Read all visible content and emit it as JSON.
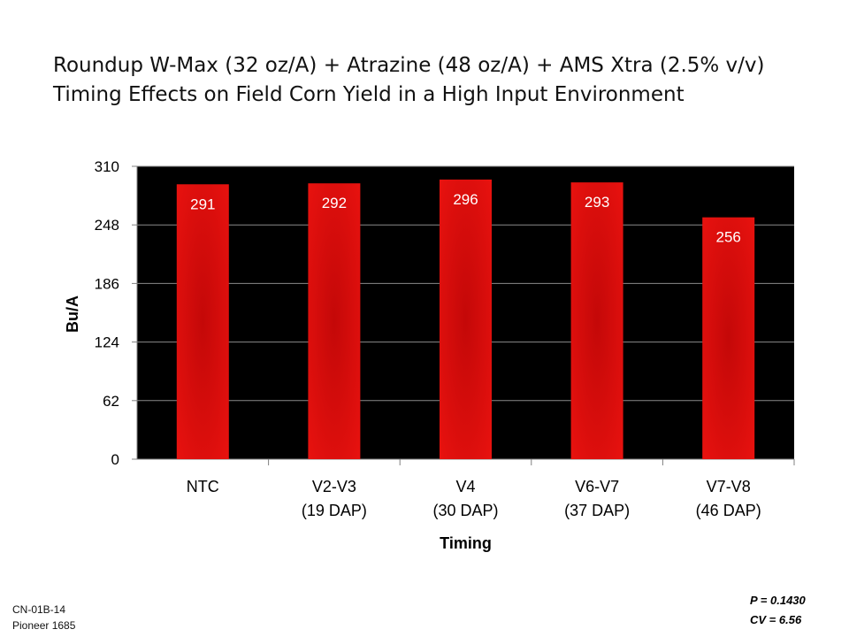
{
  "chart_data": {
    "type": "bar",
    "title": [
      "Roundup W-Max (32 oz/A) + Atrazine (48 oz/A) + AMS Xtra (2.5% v/v)",
      "Timing Effects on Field Corn Yield in a High Input Environment"
    ],
    "categories": [
      [
        "NTC"
      ],
      [
        "V2-V3",
        "(19 DAP)"
      ],
      [
        "V4",
        "(30 DAP)"
      ],
      [
        "V6-V7",
        "(37 DAP)"
      ],
      [
        "V7-V8",
        "(46 DAP)"
      ]
    ],
    "values": [
      291,
      292,
      296,
      293,
      256
    ],
    "data_labels": [
      "291",
      "292",
      "296",
      "293",
      "256"
    ],
    "xlabel": "Timing",
    "ylabel": "Bu/A",
    "ylim": [
      0,
      310
    ],
    "yticks": [
      0,
      62,
      124,
      186,
      248,
      310
    ],
    "grid": true,
    "plot_background": "#000000",
    "bar_color": "#e0100f",
    "bar_color_dark": "#b80a0a"
  },
  "footer": {
    "trial_id": "CN-01B-14",
    "hybrid": "Pioneer 1685",
    "p_value": "P = 0.1430",
    "cv": "CV = 6.56"
  }
}
